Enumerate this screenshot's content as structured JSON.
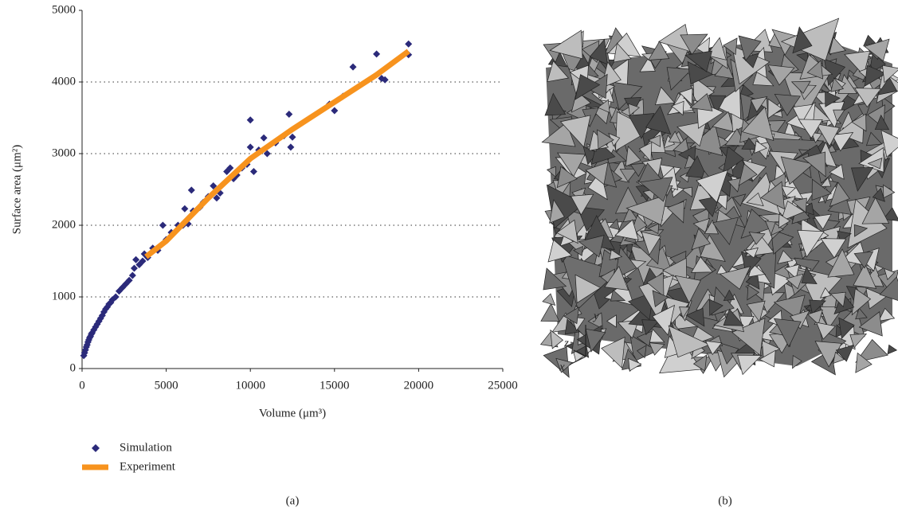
{
  "chart_data": {
    "type": "scatter",
    "xlabel": "Volume (μm³)",
    "ylabel": "Surface area (μm²)",
    "xlim": [
      0,
      25000
    ],
    "ylim": [
      0,
      5000
    ],
    "xticks": [
      0,
      5000,
      10000,
      15000,
      20000,
      25000
    ],
    "yticks": [
      0,
      1000,
      2000,
      3000,
      4000,
      5000
    ],
    "grid": true,
    "legend": "bottom-left",
    "series": [
      {
        "name": "Simulation",
        "type": "scatter",
        "color": "#2b2a7a",
        "x": [
          100,
          150,
          200,
          250,
          300,
          350,
          400,
          450,
          500,
          550,
          600,
          700,
          800,
          900,
          1000,
          1100,
          1200,
          1300,
          1400,
          1500,
          1600,
          1700,
          1800,
          2000,
          2200,
          2400,
          2600,
          2800,
          3000,
          3100,
          3200,
          3400,
          3600,
          3700,
          3900,
          4200,
          4500,
          4800,
          5000,
          5300,
          5700,
          6000,
          6100,
          6300,
          6500,
          6600,
          7000,
          7200,
          7500,
          7800,
          8000,
          8200,
          8500,
          8600,
          8800,
          9000,
          9200,
          9500,
          9800,
          10000,
          10000,
          10200,
          10500,
          10800,
          11000,
          11500,
          12000,
          12300,
          12400,
          12500,
          14700,
          15000,
          15500,
          16100,
          17500,
          17800,
          18000,
          19400,
          19400
        ],
        "values": [
          180,
          220,
          260,
          300,
          330,
          370,
          400,
          430,
          450,
          480,
          500,
          540,
          580,
          620,
          660,
          700,
          740,
          790,
          830,
          860,
          900,
          920,
          960,
          1000,
          1080,
          1130,
          1180,
          1230,
          1300,
          1400,
          1520,
          1450,
          1500,
          1600,
          1550,
          1680,
          1650,
          2000,
          1800,
          1900,
          2000,
          2000,
          2230,
          2020,
          2490,
          2200,
          2250,
          2320,
          2400,
          2550,
          2380,
          2450,
          2600,
          2750,
          2800,
          2650,
          2700,
          2800,
          2850,
          3470,
          3090,
          2750,
          3050,
          3220,
          3000,
          3150,
          3250,
          3550,
          3090,
          3230,
          3690,
          3600,
          3800,
          4210,
          4390,
          4050,
          4030,
          4530,
          4380
        ]
      },
      {
        "name": "Experiment",
        "type": "line",
        "color": "#f7931e",
        "x": [
          3800,
          5000,
          7500,
          10000,
          12500,
          15000,
          17500,
          19400
        ],
        "values": [
          1560,
          1780,
          2380,
          2930,
          3340,
          3720,
          4100,
          4430
        ]
      }
    ]
  },
  "panel_labels": [
    "(a)",
    "(b)"
  ],
  "render_axes": [
    "y",
    "z",
    "x"
  ]
}
